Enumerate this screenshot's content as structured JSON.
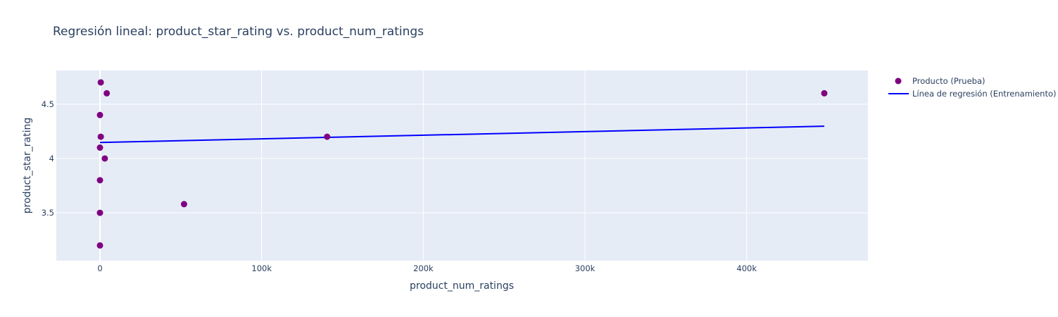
{
  "chart_data": {
    "type": "scatter",
    "title": "Regresión lineal: product_star_rating vs. product_num_ratings",
    "xlabel": "product_num_ratings",
    "ylabel": "product_star_rating",
    "xlim": [
      -27000,
      475000
    ],
    "ylim": [
      3.06,
      4.81
    ],
    "x_ticks": [
      0,
      100000,
      200000,
      300000,
      400000
    ],
    "x_tick_labels": [
      "0",
      "100k",
      "200k",
      "300k",
      "400k"
    ],
    "y_ticks": [
      3.5,
      4,
      4.5
    ],
    "y_tick_labels": [
      "3.5",
      "4",
      "4.5"
    ],
    "grid": true,
    "legend_position": "top-right",
    "colors": {
      "points": "#800080",
      "line": "#0000ff",
      "plot_bg": "#e5ecf6",
      "grid": "#ffffff",
      "text": "#2a3f5f"
    },
    "series": [
      {
        "name": "Producto (Prueba)",
        "kind": "markers",
        "points": [
          {
            "x": 500,
            "y": 4.7
          },
          {
            "x": 4200,
            "y": 4.6
          },
          {
            "x": 0,
            "y": 4.4
          },
          {
            "x": 500,
            "y": 4.2
          },
          {
            "x": 0,
            "y": 4.1
          },
          {
            "x": 3000,
            "y": 4.0
          },
          {
            "x": 0,
            "y": 3.8
          },
          {
            "x": 52000,
            "y": 3.58
          },
          {
            "x": 0,
            "y": 3.5
          },
          {
            "x": 0,
            "y": 3.2
          },
          {
            "x": 140500,
            "y": 4.2
          },
          {
            "x": 448000,
            "y": 4.6
          }
        ]
      },
      {
        "name": "Línea de regresión (Entrenamiento)",
        "kind": "line",
        "points": [
          {
            "x": 0,
            "y": 4.147
          },
          {
            "x": 448000,
            "y": 4.297
          }
        ]
      }
    ]
  }
}
